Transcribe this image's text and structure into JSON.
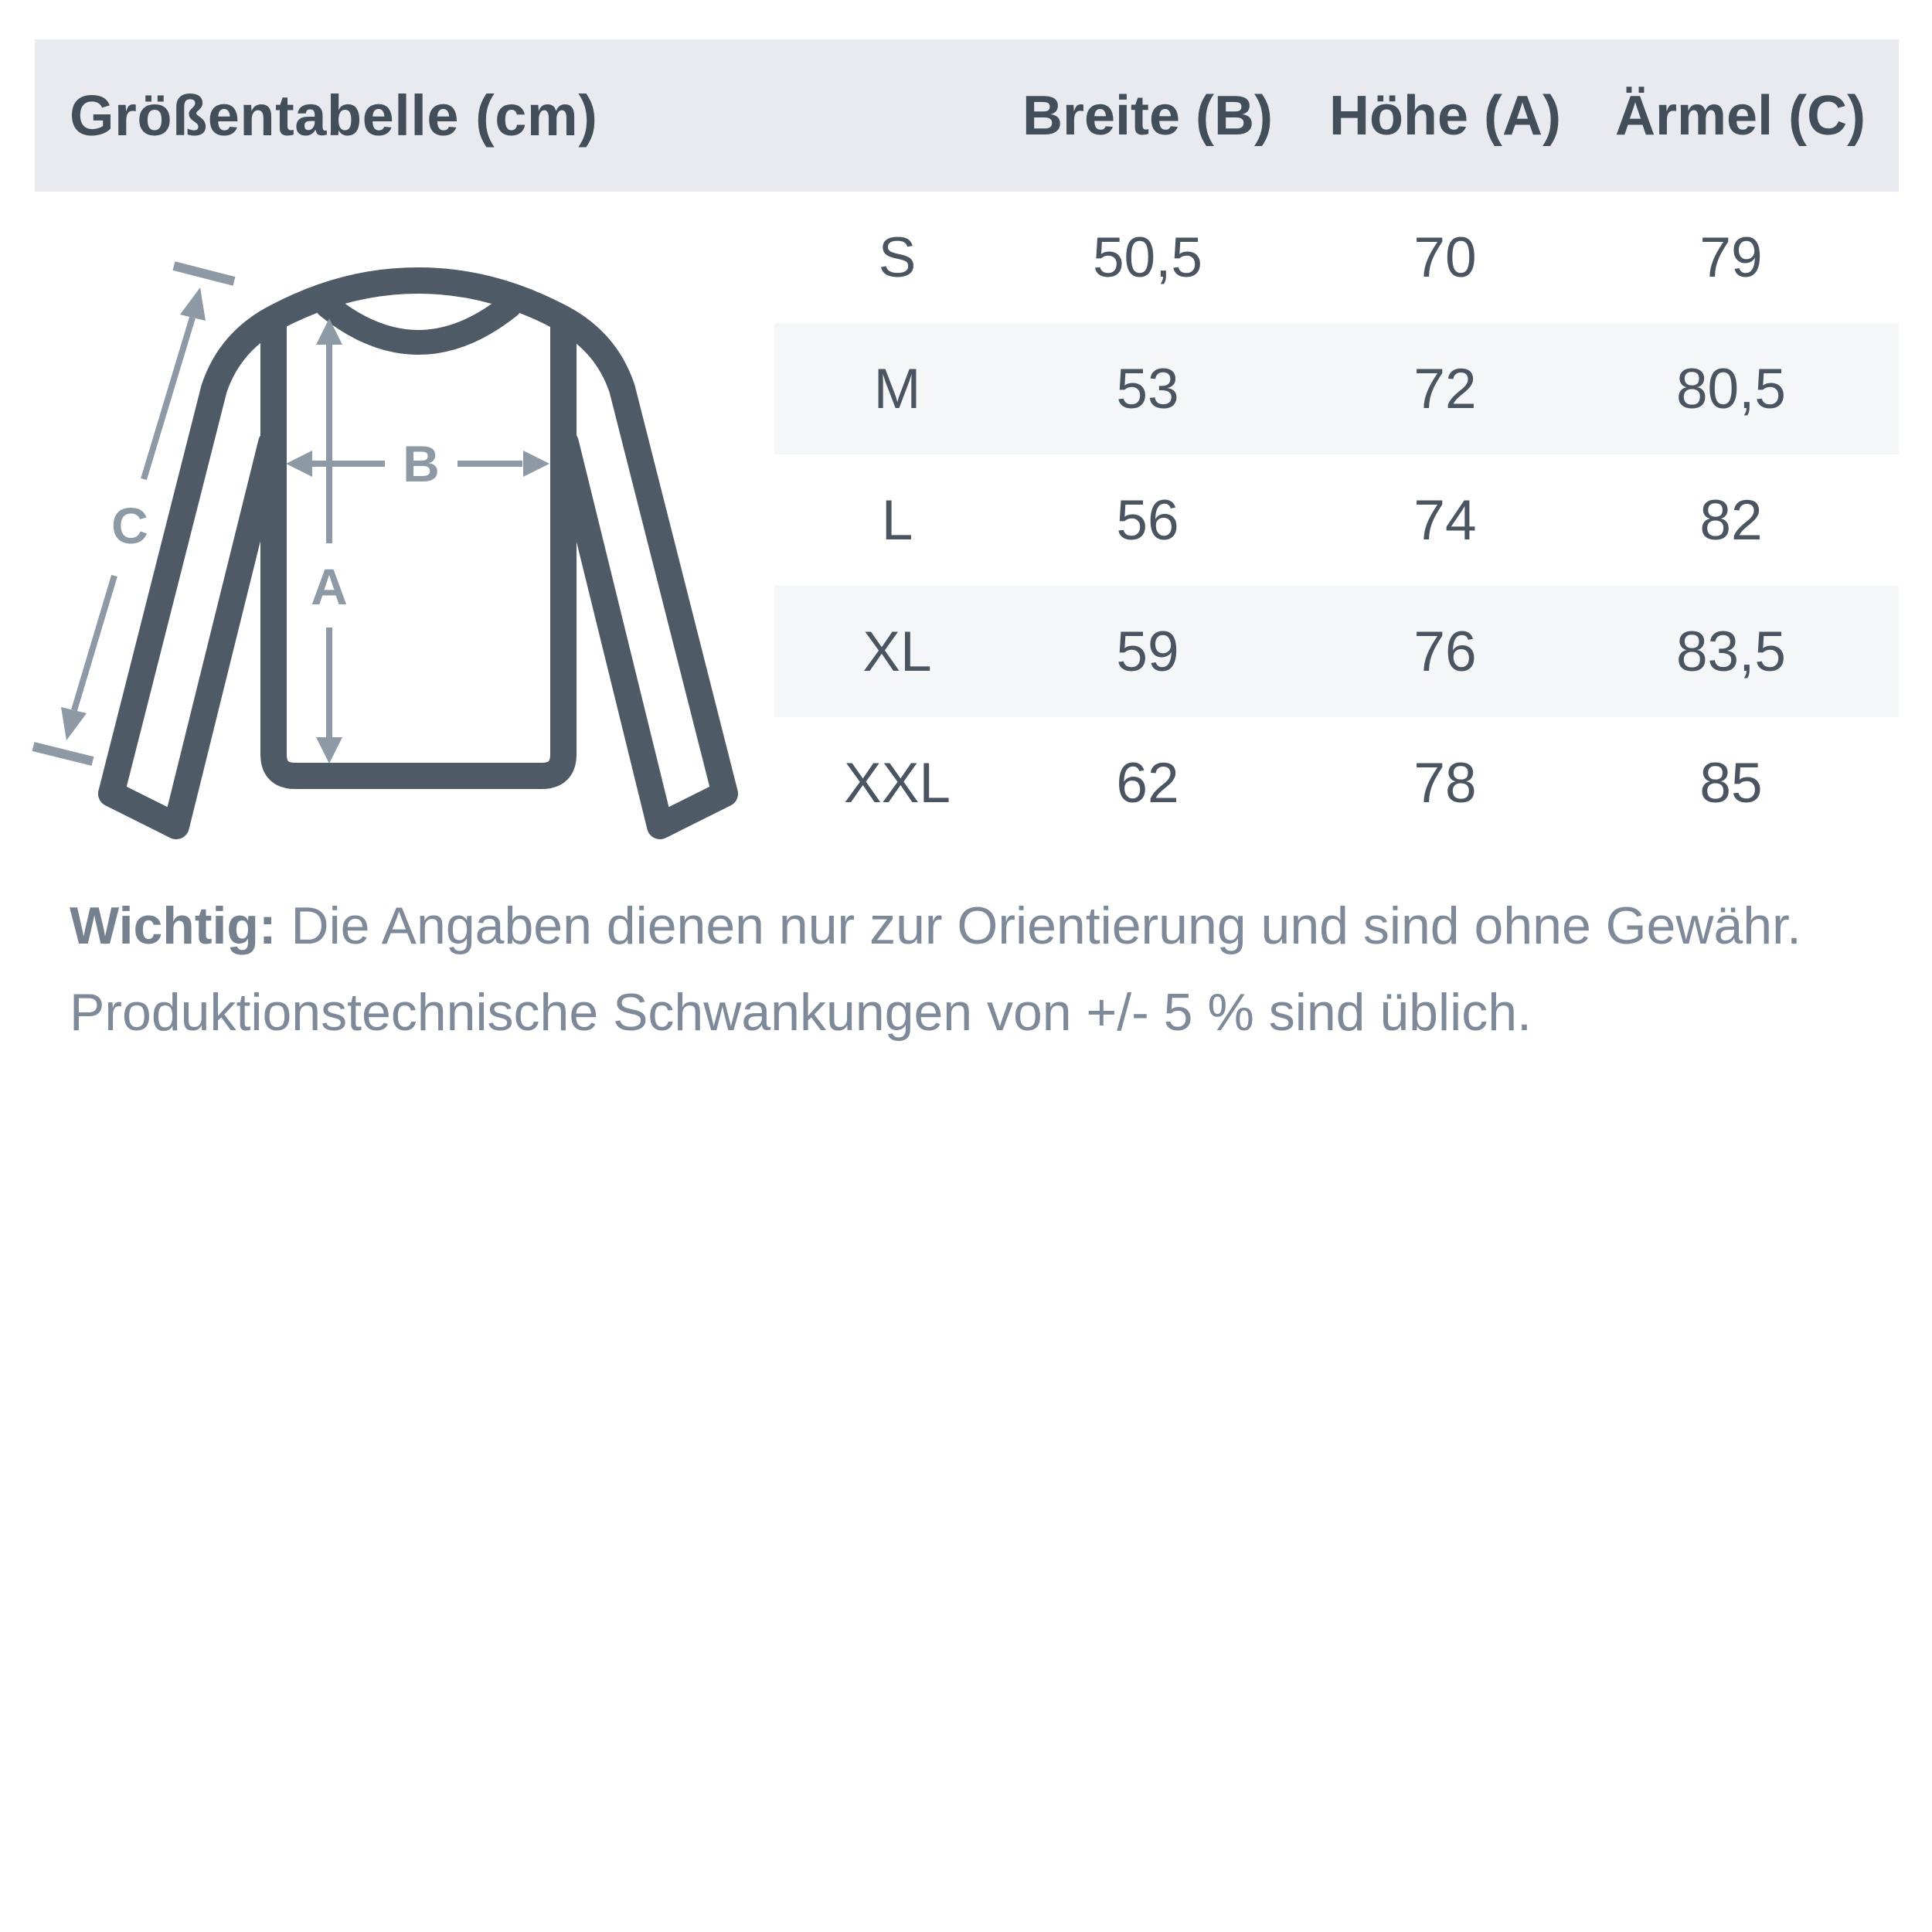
{
  "header": {
    "title": "Größentabelle (cm)",
    "columns": [
      "Breite (B)",
      "Höhe (A)",
      "Ärmel (C)"
    ]
  },
  "table": {
    "rows": [
      {
        "size": "S",
        "breite": "50,5",
        "hoehe": "70",
        "aermel": "79"
      },
      {
        "size": "M",
        "breite": "53",
        "hoehe": "72",
        "aermel": "80,5"
      },
      {
        "size": "L",
        "breite": "56",
        "hoehe": "74",
        "aermel": "82"
      },
      {
        "size": "XL",
        "breite": "59",
        "hoehe": "76",
        "aermel": "83,5"
      },
      {
        "size": "XXL",
        "breite": "62",
        "hoehe": "78",
        "aermel": "85"
      }
    ]
  },
  "diagram": {
    "labels": {
      "a": "A",
      "b": "B",
      "c": "C"
    }
  },
  "note": {
    "label": "Wichtig:",
    "line1": "Die Angaben dienen nur zur Orientierung und sind ohne Gewähr.",
    "line2": "Produktionstechnische Schwankungen von +/- 5 % sind üblich."
  },
  "colors": {
    "header_bg": "#e8eaef",
    "row_alt_bg": "#f5f6f8",
    "dark_text": "#434e5b",
    "cell_text": "#4a5561",
    "shirt_outline": "#4e5a66",
    "dimension_gray": "#8e99a6",
    "note_text": "#7e8a99"
  }
}
